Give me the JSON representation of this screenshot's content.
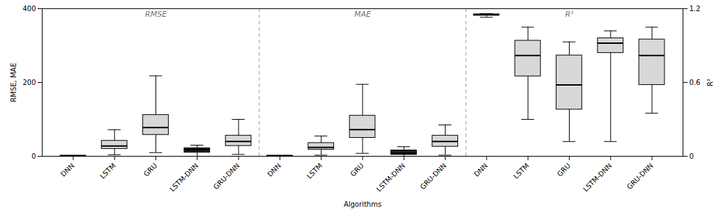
{
  "chart_data": {
    "type": "box",
    "xlabel": "Algorithms",
    "ylabel": "RMSE, MAE",
    "y2label": "R²",
    "ylim": [
      0,
      400
    ],
    "yticks": [
      0,
      200,
      400
    ],
    "y2lim": [
      0,
      1.2
    ],
    "y2ticks": [
      0,
      0.6,
      1.2
    ],
    "categories": [
      "DNN",
      "LSTM",
      "GRU",
      "LSTM-DNN",
      "GRU-DNN",
      "DNN",
      "LSTM",
      "GRU",
      "LSTM-DNN",
      "GRU-DNN",
      "DNN",
      "LSTM",
      "GRU",
      "LSTM-DNN",
      "GRU-DNN"
    ],
    "series": [
      {
        "name": "RMSE",
        "colors": [
          "#d8d8d8",
          "#d8d8d8",
          "#d8d8d8",
          "#202020",
          "#d8d8d8",
          null,
          null,
          null,
          null,
          null,
          null,
          null,
          null,
          null,
          null
        ],
        "values": [
          {
            "whislo": 0,
            "q1": 0,
            "med": 1,
            "q3": 2,
            "whishi": 2
          },
          {
            "whislo": 4,
            "q1": 20,
            "med": 28,
            "q3": 42,
            "whishi": 72
          },
          {
            "whislo": 10,
            "q1": 58,
            "med": 78,
            "q3": 112,
            "whishi": 218
          },
          {
            "whislo": 0,
            "q1": 10,
            "med": 18,
            "q3": 22,
            "whishi": 30
          },
          {
            "whislo": 5,
            "q1": 28,
            "med": 40,
            "q3": 56,
            "whishi": 100
          },
          null,
          null,
          null,
          null,
          null,
          null,
          null,
          null,
          null,
          null
        ]
      },
      {
        "name": "MAE",
        "colors": [
          null,
          null,
          null,
          null,
          null,
          "#d8d8d8",
          "#d8d8d8",
          "#d8d8d8",
          "#202020",
          "#d8d8d8",
          null,
          null,
          null,
          null,
          null
        ],
        "values": [
          null,
          null,
          null,
          null,
          null,
          {
            "whislo": 0,
            "q1": 0,
            "med": 1,
            "q3": 2,
            "whishi": 2
          },
          {
            "whislo": 3,
            "q1": 18,
            "med": 24,
            "q3": 36,
            "whishi": 55
          },
          {
            "whislo": 8,
            "q1": 50,
            "med": 72,
            "q3": 110,
            "whishi": 195
          },
          {
            "whislo": 0,
            "q1": 4,
            "med": 8,
            "q3": 16,
            "whishi": 26
          },
          {
            "whislo": 3,
            "q1": 26,
            "med": 40,
            "q3": 56,
            "whishi": 85
          },
          null,
          null,
          null,
          null,
          null
        ]
      },
      {
        "name": "R²",
        "axis": "y2",
        "colors": [
          null,
          null,
          null,
          null,
          null,
          null,
          null,
          null,
          null,
          null,
          "#d8d8d8",
          "#d8d8d8",
          "#d8d8d8",
          "#d8d8d8",
          "#d8d8d8"
        ],
        "values": [
          null,
          null,
          null,
          null,
          null,
          null,
          null,
          null,
          null,
          null,
          {
            "whislo": 1.13,
            "q1": 1.145,
            "med": 1.15,
            "q3": 1.155,
            "whishi": 1.16
          },
          {
            "whislo": 0.3,
            "q1": 0.65,
            "med": 0.82,
            "q3": 0.94,
            "whishi": 1.05
          },
          {
            "whislo": 0.12,
            "q1": 0.38,
            "med": 0.58,
            "q3": 0.82,
            "whishi": 0.93
          },
          {
            "whislo": 0.12,
            "q1": 0.84,
            "med": 0.92,
            "q3": 0.96,
            "whishi": 1.02
          },
          {
            "whislo": 0.35,
            "q1": 0.58,
            "med": 0.82,
            "q3": 0.95,
            "whishi": 1.05
          }
        ]
      }
    ]
  }
}
